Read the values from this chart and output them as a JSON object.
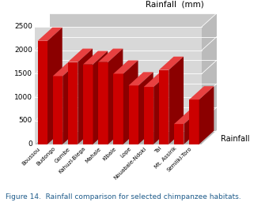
{
  "categories": [
    "Boussou",
    "Budongo",
    "Gombe",
    "Kahuzi-Biega",
    "Mahale",
    "Kibale",
    "Lope",
    "Nouabale-Ndoki",
    "Tai",
    "Mt. Assirik",
    "Semliki-Toro"
  ],
  "values": [
    2200,
    1450,
    1750,
    1700,
    1750,
    1500,
    1250,
    1220,
    1580,
    430,
    950
  ],
  "bar_color_face": "#cc0000",
  "bar_color_side": "#8b0000",
  "bar_color_top": "#e84040",
  "back_wall_color": "#c8c8c8",
  "front_wall_color": "#d8d8d8",
  "floor_color": "#b0b0b0",
  "right_wall_color": "#bbbbbb",
  "ylabel": "Rainfall  (mm)",
  "legend_label": "Rainfall",
  "ylim": [
    0,
    2500
  ],
  "yticks": [
    0,
    500,
    1000,
    1500,
    2000,
    2500
  ],
  "caption": "Figure 14.  Rainfall comparison for selected chimpanzee habitats.",
  "caption_color": "#1f5c8b"
}
